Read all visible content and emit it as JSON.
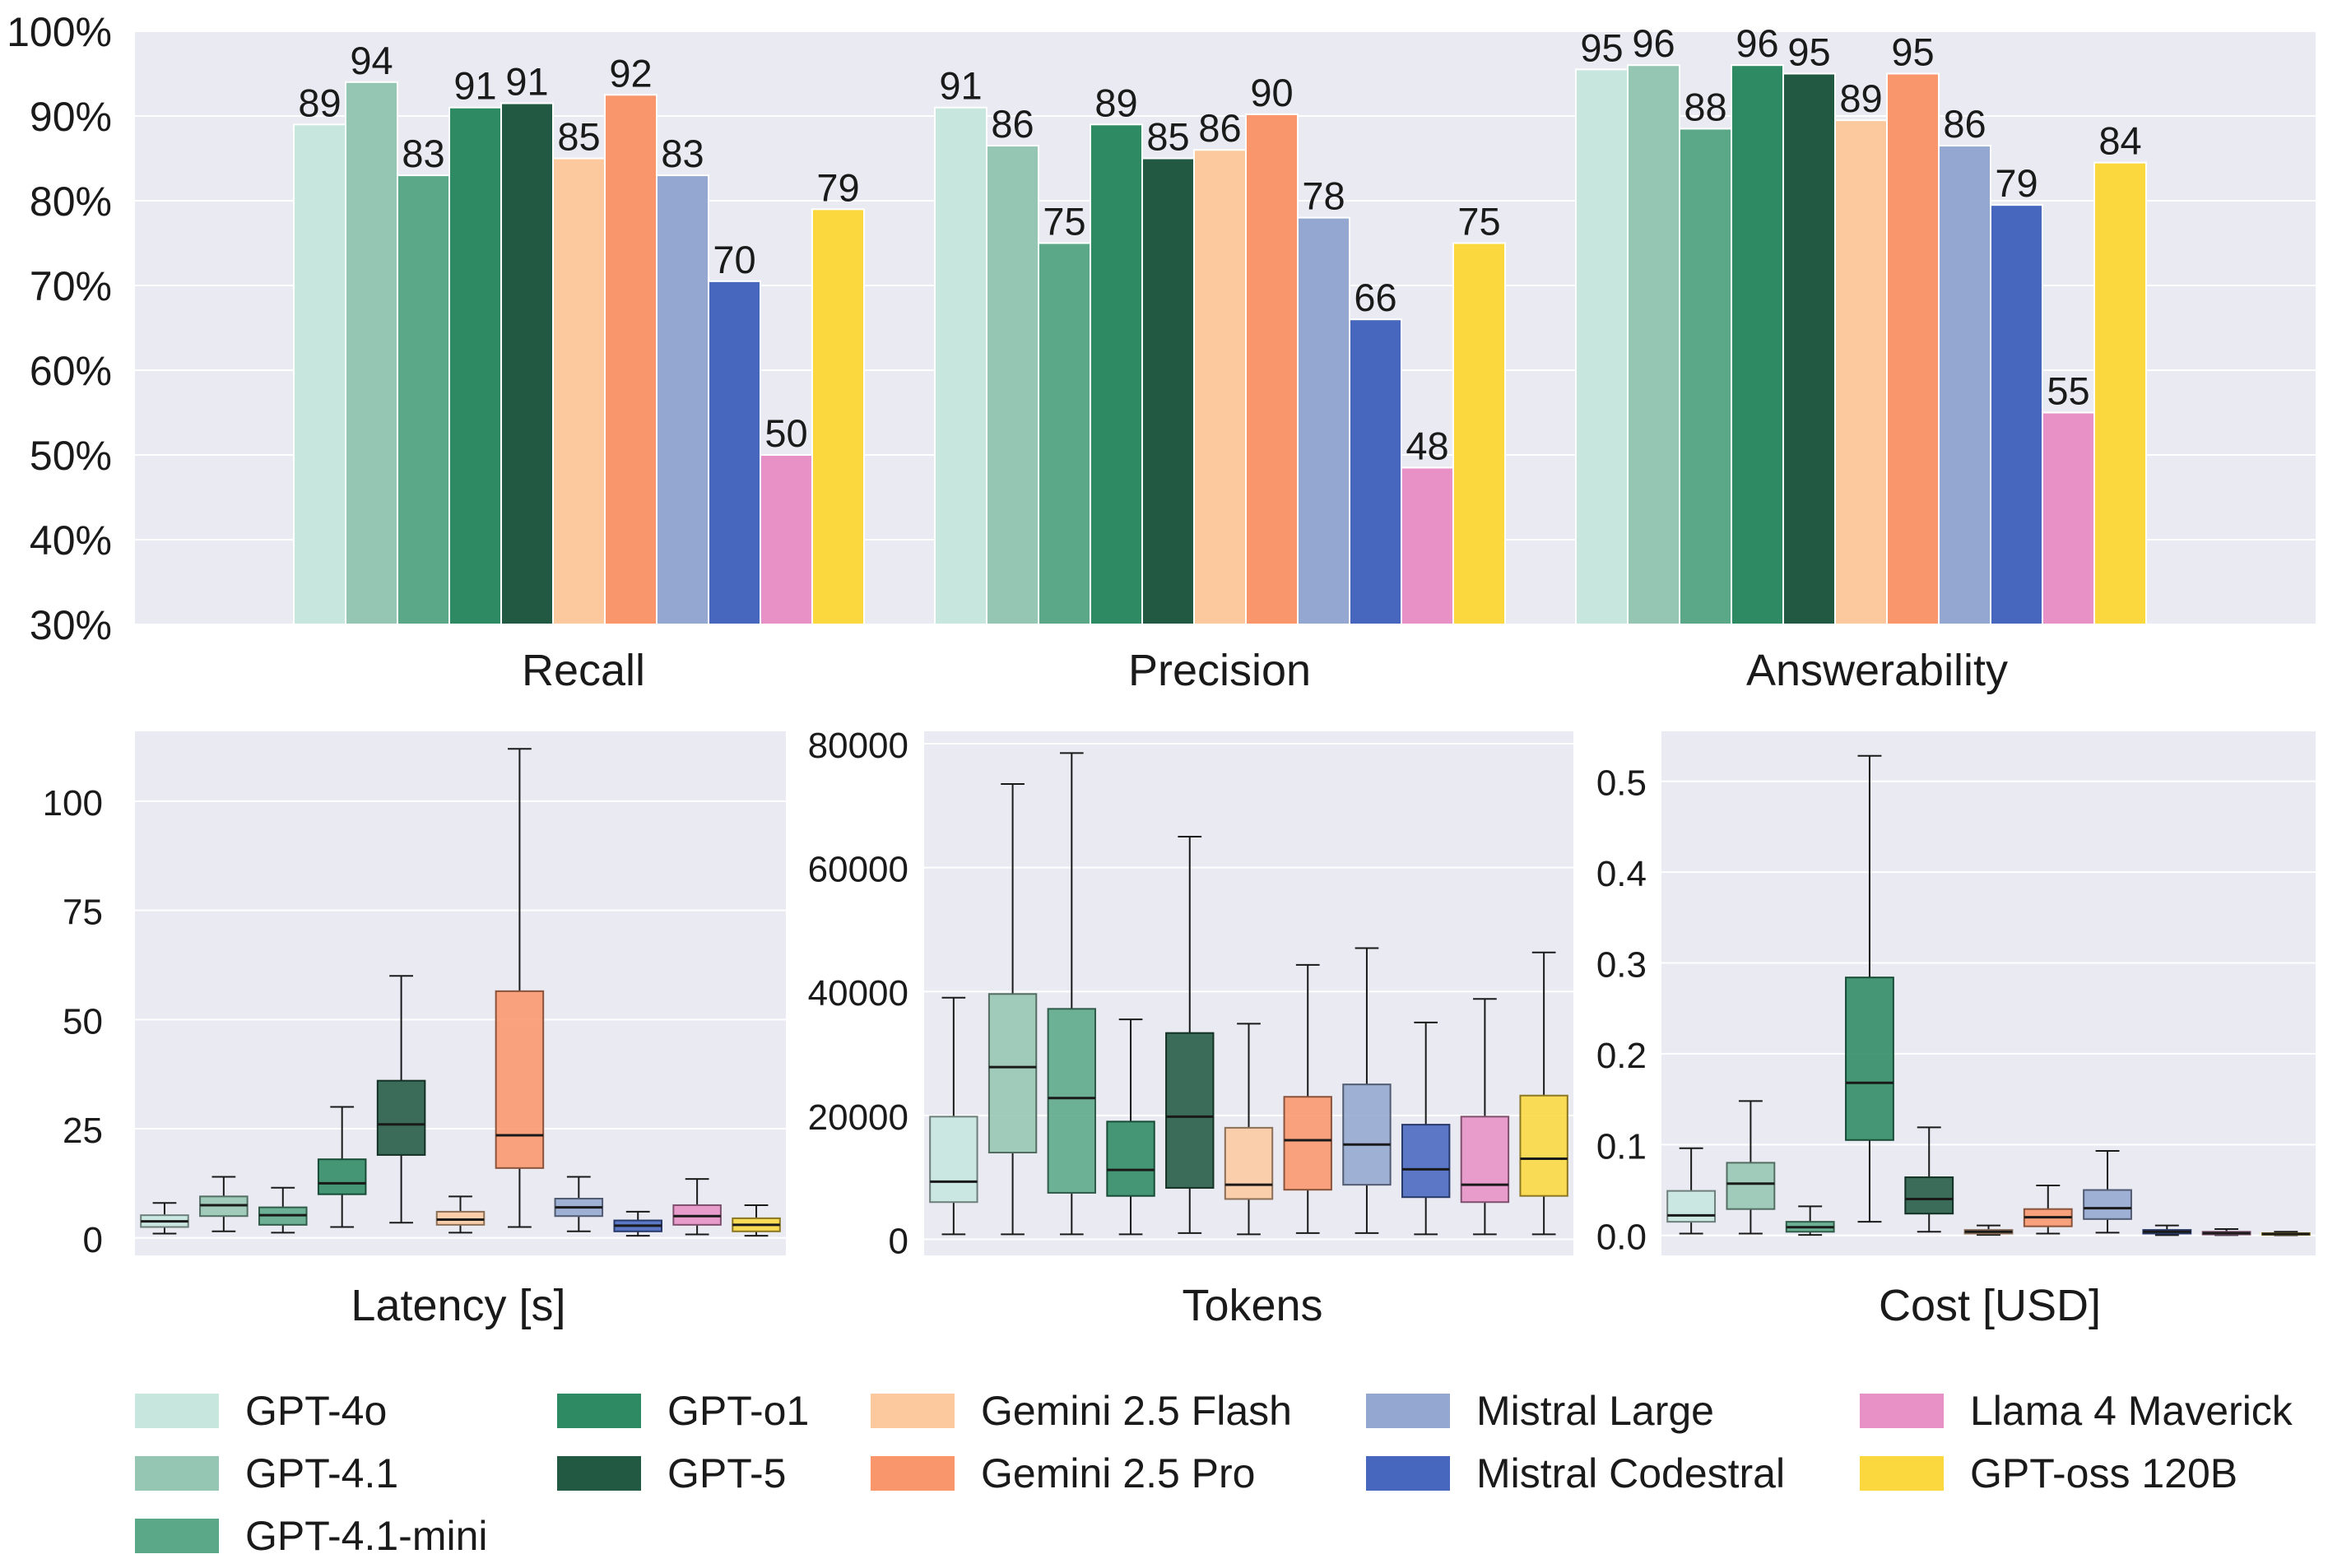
{
  "models": [
    {
      "name": "GPT-4o",
      "color": "#c6e6de"
    },
    {
      "name": "GPT-4.1",
      "color": "#95c6b3"
    },
    {
      "name": "GPT-4.1-mini",
      "color": "#5aa887"
    },
    {
      "name": "GPT-o1",
      "color": "#2e8a63"
    },
    {
      "name": "GPT-5",
      "color": "#225943"
    },
    {
      "name": "Gemini 2.5 Flash",
      "color": "#fcc99f"
    },
    {
      "name": "Gemini 2.5 Pro",
      "color": "#fa966c"
    },
    {
      "name": "Mistral Large",
      "color": "#94a7d0"
    },
    {
      "name": "Mistral Codestral",
      "color": "#4767be"
    },
    {
      "name": "Llama 4 Maverick",
      "color": "#e791c6"
    },
    {
      "name": "GPT-oss 120B",
      "color": "#fcd83f"
    }
  ],
  "legend": {
    "columns": [
      [
        "GPT-4o",
        "GPT-4.1",
        "GPT-4.1-mini"
      ],
      [
        "GPT-o1",
        "GPT-5"
      ],
      [
        "Gemini 2.5 Flash",
        "Gemini 2.5 Pro"
      ],
      [
        "Mistral Large",
        "Mistral Codestral"
      ],
      [
        "Llama 4 Maverick",
        "GPT-oss 120B"
      ]
    ]
  },
  "chart_data": [
    {
      "type": "bar",
      "id": "top",
      "categories": [
        "Recall",
        "Precision",
        "Answerability"
      ],
      "ylim": [
        30,
        100
      ],
      "yticks": [
        "30%",
        "40%",
        "50%",
        "60%",
        "70%",
        "80%",
        "90%",
        "100%"
      ],
      "grid": true,
      "series": [
        {
          "name": "GPT-4o",
          "values": [
            89,
            91,
            95
          ]
        },
        {
          "name": "GPT-4.1",
          "values": [
            94,
            86,
            96
          ]
        },
        {
          "name": "GPT-4.1-mini",
          "values": [
            83,
            75,
            88
          ]
        },
        {
          "name": "GPT-o1",
          "values": [
            91,
            89,
            96
          ]
        },
        {
          "name": "GPT-5",
          "values": [
            91,
            85,
            95
          ]
        },
        {
          "name": "Gemini 2.5 Flash",
          "values": [
            85,
            86,
            89
          ]
        },
        {
          "name": "Gemini 2.5 Pro",
          "values": [
            92,
            90,
            95
          ]
        },
        {
          "name": "Mistral Large",
          "values": [
            83,
            78,
            86
          ]
        },
        {
          "name": "Mistral Codestral",
          "values": [
            70,
            66,
            79
          ]
        },
        {
          "name": "Llama 4 Maverick",
          "values": [
            50,
            48,
            55
          ]
        },
        {
          "name": "GPT-oss 120B",
          "values": [
            79,
            75,
            84
          ]
        }
      ],
      "exact_values": {
        "Recall": [
          89,
          94,
          83,
          91,
          91.5,
          85,
          92.5,
          83,
          70.5,
          50,
          79
        ],
        "Precision": [
          91,
          86.5,
          75,
          89,
          85,
          86,
          90.2,
          78,
          66,
          48.5,
          75
        ],
        "Answerability": [
          95.5,
          96,
          88.5,
          96,
          95,
          89.5,
          95,
          86.5,
          79.5,
          55,
          84.5
        ]
      }
    },
    {
      "type": "box",
      "id": "latency",
      "xlabel": "Latency [s]",
      "ylim": [
        -4,
        116
      ],
      "yticks": [
        0,
        25,
        50,
        75,
        100
      ],
      "series": [
        {
          "name": "GPT-4o",
          "whislo": 1,
          "q1": 2.5,
          "med": 3.8,
          "q3": 5.2,
          "whishi": 8
        },
        {
          "name": "GPT-4.1",
          "whislo": 1.5,
          "q1": 5,
          "med": 7.5,
          "q3": 9.5,
          "whishi": 14
        },
        {
          "name": "GPT-4.1-mini",
          "whislo": 1.2,
          "q1": 3,
          "med": 5.2,
          "q3": 7,
          "whishi": 11.5
        },
        {
          "name": "GPT-o1",
          "whislo": 2.5,
          "q1": 10,
          "med": 12.5,
          "q3": 18,
          "whishi": 30
        },
        {
          "name": "GPT-5",
          "whislo": 3.5,
          "q1": 19,
          "med": 26,
          "q3": 36,
          "whishi": 60
        },
        {
          "name": "Gemini 2.5 Flash",
          "whislo": 1.2,
          "q1": 3,
          "med": 4.2,
          "q3": 6,
          "whishi": 9.5
        },
        {
          "name": "Gemini 2.5 Pro",
          "whislo": 2.5,
          "q1": 16,
          "med": 23.5,
          "q3": 56.5,
          "whishi": 112
        },
        {
          "name": "Mistral Large",
          "whislo": 1.5,
          "q1": 5,
          "med": 7,
          "q3": 9,
          "whishi": 14
        },
        {
          "name": "Mistral Codestral",
          "whislo": 0.5,
          "q1": 1.5,
          "med": 2.8,
          "q3": 4,
          "whishi": 6
        },
        {
          "name": "Llama 4 Maverick",
          "whislo": 0.8,
          "q1": 3,
          "med": 5,
          "q3": 7.5,
          "whishi": 13.5
        },
        {
          "name": "GPT-oss 120B",
          "whislo": 0.5,
          "q1": 1.5,
          "med": 3,
          "q3": 4.5,
          "whishi": 7.5
        }
      ]
    },
    {
      "type": "box",
      "id": "tokens",
      "xlabel": "Tokens",
      "ylim": [
        -2600,
        82000
      ],
      "yticks": [
        0,
        20000,
        40000,
        60000,
        80000
      ],
      "series": [
        {
          "name": "GPT-4o",
          "whislo": 800,
          "q1": 6000,
          "med": 9300,
          "q3": 19800,
          "whishi": 39000
        },
        {
          "name": "GPT-4.1",
          "whislo": 800,
          "q1": 14000,
          "med": 27800,
          "q3": 39600,
          "whishi": 73500
        },
        {
          "name": "GPT-4.1-mini",
          "whislo": 800,
          "q1": 7500,
          "med": 22800,
          "q3": 37200,
          "whishi": 78500
        },
        {
          "name": "GPT-o1",
          "whislo": 800,
          "q1": 7000,
          "med": 11200,
          "q3": 19000,
          "whishi": 35500
        },
        {
          "name": "GPT-5",
          "whislo": 1000,
          "q1": 8300,
          "med": 19800,
          "q3": 33300,
          "whishi": 65000
        },
        {
          "name": "Gemini 2.5 Flash",
          "whislo": 800,
          "q1": 6500,
          "med": 8800,
          "q3": 18000,
          "whishi": 34800
        },
        {
          "name": "Gemini 2.5 Pro",
          "whislo": 1000,
          "q1": 8000,
          "med": 16000,
          "q3": 23000,
          "whishi": 44300
        },
        {
          "name": "Mistral Large",
          "whislo": 1000,
          "q1": 8800,
          "med": 15300,
          "q3": 25000,
          "whishi": 47000
        },
        {
          "name": "Mistral Codestral",
          "whislo": 800,
          "q1": 6800,
          "med": 11300,
          "q3": 18500,
          "whishi": 35000
        },
        {
          "name": "Llama 4 Maverick",
          "whislo": 800,
          "q1": 6000,
          "med": 8800,
          "q3": 19800,
          "whishi": 38800
        },
        {
          "name": "GPT-oss 120B",
          "whislo": 800,
          "q1": 7000,
          "med": 13000,
          "q3": 23200,
          "whishi": 46300
        }
      ]
    },
    {
      "type": "box",
      "id": "cost",
      "xlabel": "Cost [USD]",
      "ylim": [
        -0.022,
        0.555
      ],
      "yticks": [
        "0.0",
        "0.1",
        "0.2",
        "0.3",
        "0.4",
        "0.5"
      ],
      "series": [
        {
          "name": "GPT-4o",
          "whislo": 0.002,
          "q1": 0.015,
          "med": 0.022,
          "q3": 0.049,
          "whishi": 0.096
        },
        {
          "name": "GPT-4.1",
          "whislo": 0.002,
          "q1": 0.029,
          "med": 0.057,
          "q3": 0.08,
          "whishi": 0.148
        },
        {
          "name": "GPT-4.1-mini",
          "whislo": 0.0005,
          "q1": 0.004,
          "med": 0.009,
          "q3": 0.015,
          "whishi": 0.032
        },
        {
          "name": "GPT-o1",
          "whislo": 0.015,
          "q1": 0.105,
          "med": 0.168,
          "q3": 0.284,
          "whishi": 0.528
        },
        {
          "name": "GPT-5",
          "whislo": 0.004,
          "q1": 0.024,
          "med": 0.04,
          "q3": 0.064,
          "whishi": 0.119
        },
        {
          "name": "Gemini 2.5 Flash",
          "whislo": 0.0005,
          "q1": 0.002,
          "med": 0.004,
          "q3": 0.006,
          "whishi": 0.011
        },
        {
          "name": "Gemini 2.5 Pro",
          "whislo": 0.002,
          "q1": 0.01,
          "med": 0.02,
          "q3": 0.029,
          "whishi": 0.055
        },
        {
          "name": "Mistral Large",
          "whislo": 0.003,
          "q1": 0.018,
          "med": 0.03,
          "q3": 0.05,
          "whishi": 0.093
        },
        {
          "name": "Mistral Codestral",
          "whislo": 0.0003,
          "q1": 0.002,
          "med": 0.004,
          "q3": 0.006,
          "whishi": 0.011
        },
        {
          "name": "Llama 4 Maverick",
          "whislo": 0.0003,
          "q1": 0.001,
          "med": 0.0025,
          "q3": 0.004,
          "whishi": 0.007
        },
        {
          "name": "GPT-oss 120B",
          "whislo": 0.0002,
          "q1": 0.0008,
          "med": 0.0015,
          "q3": 0.0025,
          "whishi": 0.004
        }
      ]
    }
  ]
}
